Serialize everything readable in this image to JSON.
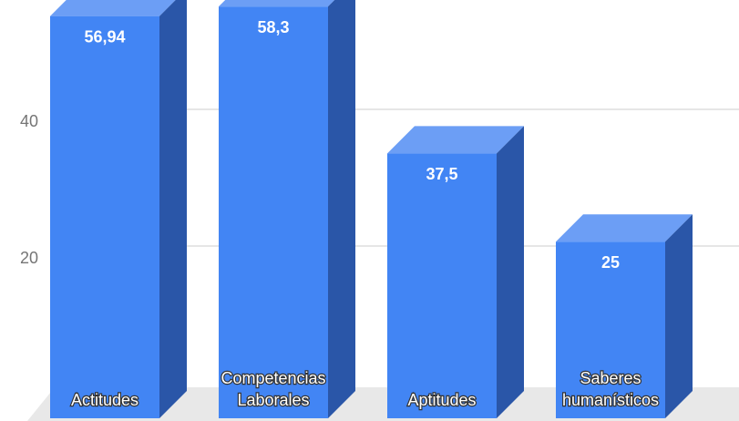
{
  "chart_data": {
    "type": "bar3d",
    "categories": [
      "Actitudes",
      "Competencias Laborales",
      "Aptitudes",
      "Saberes humanísticos"
    ],
    "values": [
      56.94,
      58.3,
      37.5,
      25
    ],
    "value_labels": [
      "56,94",
      "58,3",
      "37,5",
      "25"
    ],
    "color": "#4285f4",
    "ylim": [
      0,
      60
    ],
    "yticks": [
      20,
      40
    ],
    "grid": true
  }
}
